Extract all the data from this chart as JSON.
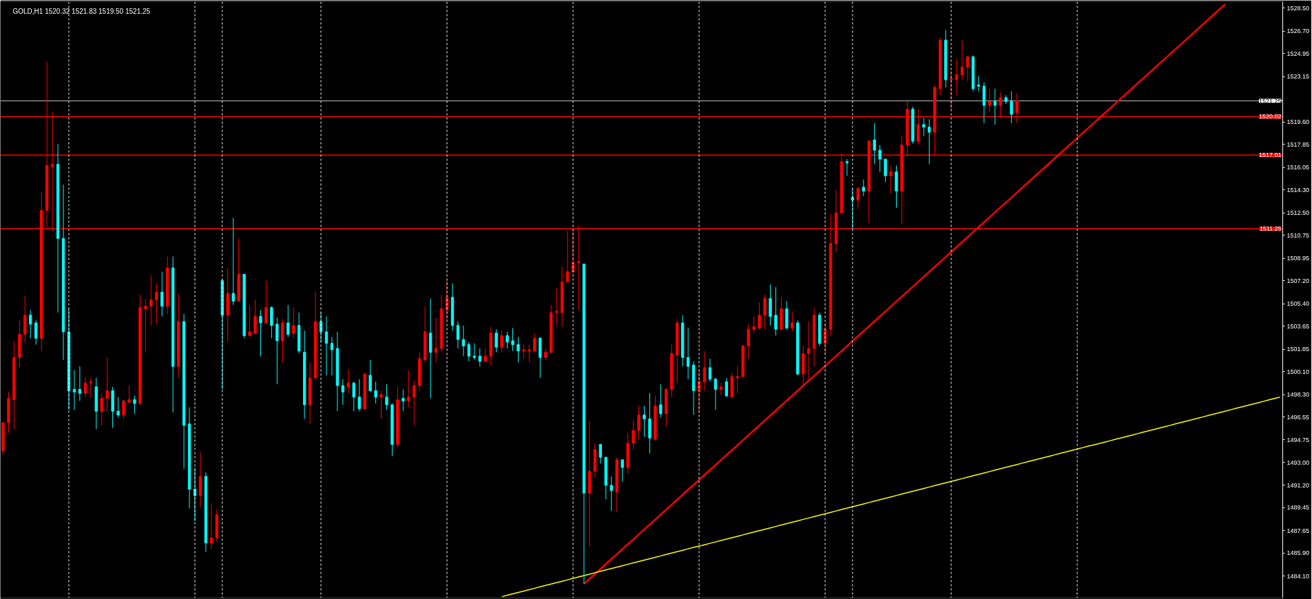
{
  "chart_data": {
    "type": "candlestick",
    "title": "GOLD,H1  1520.32 1521.83 1519.50 1521.25",
    "categories": [
      null,
      null,
      null,
      null,
      null,
      null,
      null,
      null,
      null,
      null,
      null,
      null,
      null,
      null,
      null,
      null,
      null,
      null,
      null,
      null,
      null,
      null,
      null,
      null,
      null,
      null,
      null,
      null,
      null,
      null,
      null,
      null,
      null,
      null,
      null,
      null,
      null,
      null,
      null,
      null,
      null,
      null,
      null,
      null,
      null,
      null,
      null,
      null,
      null,
      null,
      null,
      null,
      null,
      null,
      null,
      null,
      null,
      null,
      null,
      null,
      null,
      null,
      null,
      null,
      null,
      null,
      null,
      null,
      null,
      null,
      null,
      null,
      null,
      null,
      null,
      null,
      null,
      null,
      null,
      null,
      null,
      null,
      null,
      null,
      null,
      null,
      null,
      null,
      null,
      null,
      null,
      null,
      null,
      null,
      null,
      null,
      null,
      null,
      null,
      null,
      null,
      null,
      null,
      null,
      null,
      null,
      null,
      null,
      null,
      null,
      null,
      null,
      null,
      null,
      null,
      null,
      null,
      null,
      null,
      null,
      null,
      null,
      null,
      null,
      null,
      null,
      null,
      null,
      null,
      null,
      null,
      null,
      null,
      null,
      null,
      null,
      null,
      null,
      null,
      null,
      null,
      null,
      null,
      null,
      null,
      null,
      null,
      null,
      null,
      null,
      null,
      null,
      null,
      null,
      null,
      null,
      null,
      null,
      null,
      null,
      null,
      null,
      null,
      null,
      null,
      null,
      null,
      null,
      null,
      null,
      null,
      null,
      null,
      null,
      null,
      null,
      null,
      null,
      null,
      null,
      null,
      null,
      null,
      null,
      null,
      null,
      null,
      null,
      null,
      null,
      null,
      null,
      null,
      null,
      null,
      null,
      null,
      null,
      null,
      null,
      null,
      null,
      null,
      null,
      null,
      null,
      null,
      null,
      null,
      null,
      null,
      null,
      null,
      null,
      null,
      null,
      null,
      null,
      null,
      null,
      null,
      null,
      null,
      null,
      null,
      null,
      null,
      null,
      null,
      null,
      null,
      null,
      null,
      null
    ],
    "ohlc": [
      [
        1493.9,
        1496.1,
        1493.6,
        1496.1
      ],
      [
        1496.1,
        1498.5,
        1495.3,
        1498.0
      ],
      [
        1497.9,
        1502.4,
        1495.6,
        1501.2
      ],
      [
        1501.2,
        1504.1,
        1500.4,
        1503.0
      ],
      [
        1503.0,
        1506.0,
        1502.3,
        1504.5
      ],
      [
        1504.5,
        1504.9,
        1502.7,
        1503.8
      ],
      [
        1503.9,
        1504.1,
        1502.2,
        1502.7
      ],
      [
        1502.7,
        1514.1,
        1501.7,
        1512.7
      ],
      [
        1512.7,
        1524.3,
        1511.4,
        1516.2
      ],
      [
        1516.1,
        1520.4,
        1511.1,
        1516.3
      ],
      [
        1516.3,
        1517.9,
        1504.7,
        1510.5
      ],
      [
        1510.5,
        1514.7,
        1501.0,
        1503.2
      ],
      [
        1503.2,
        1505.0,
        1497.1,
        1498.6
      ],
      [
        1498.7,
        1500.2,
        1497.1,
        1498.5
      ],
      [
        1498.7,
        1500.5,
        1497.8,
        1498.4
      ],
      [
        1498.4,
        1499.7,
        1498.1,
        1499.2
      ],
      [
        1499.2,
        1499.6,
        1498.1,
        1499.3
      ],
      [
        1498.9,
        1499.6,
        1495.6,
        1497.0
      ],
      [
        1497.0,
        1498.4,
        1495.9,
        1498.0
      ],
      [
        1498.0,
        1501.2,
        1496.9,
        1498.6
      ],
      [
        1498.6,
        1498.9,
        1495.7,
        1497.0
      ],
      [
        1497.0,
        1498.1,
        1496.5,
        1496.7
      ],
      [
        1496.7,
        1497.9,
        1496.4,
        1497.8
      ],
      [
        1497.7,
        1499.0,
        1497.6,
        1497.9
      ],
      [
        1497.9,
        1498.2,
        1496.8,
        1497.6
      ],
      [
        1497.6,
        1506.1,
        1497.5,
        1505.1
      ],
      [
        1505.0,
        1505.8,
        1501.6,
        1505.2
      ],
      [
        1505.2,
        1507.6,
        1503.7,
        1505.7
      ],
      [
        1505.7,
        1507.0,
        1503.8,
        1506.3
      ],
      [
        1506.3,
        1507.9,
        1504.4,
        1505.2
      ],
      [
        1505.2,
        1509.1,
        1504.6,
        1508.2
      ],
      [
        1508.2,
        1509.1,
        1496.9,
        1500.5
      ],
      [
        1500.5,
        1506.2,
        1499.6,
        1504.0
      ],
      [
        1504.0,
        1504.6,
        1492.5,
        1495.9
      ],
      [
        1496.0,
        1497.3,
        1489.4,
        1490.9
      ],
      [
        1490.9,
        1492.5,
        1488.4,
        1490.4
      ],
      [
        1490.4,
        1493.8,
        1489.5,
        1491.9
      ],
      [
        1491.9,
        1492.2,
        1486.0,
        1486.7
      ],
      [
        1486.7,
        1489.8,
        1486.2,
        1487.1
      ],
      [
        1487.1,
        1489.3,
        1486.8,
        1488.9
      ],
      [
        1507.2,
        1507.3,
        1498.7,
        1504.5
      ],
      [
        1504.5,
        1508.2,
        1502.4,
        1506.2
      ],
      [
        1506.2,
        1512.1,
        1505.3,
        1505.6
      ],
      [
        1505.6,
        1510.5,
        1505.6,
        1507.7
      ],
      [
        1507.7,
        1507.7,
        1502.7,
        1502.9
      ],
      [
        1502.9,
        1505.3,
        1502.8,
        1503.2
      ],
      [
        1503.1,
        1505.7,
        1503.0,
        1504.4
      ],
      [
        1504.4,
        1504.9,
        1501.3,
        1503.9
      ],
      [
        1503.9,
        1507.2,
        1503.8,
        1505.1
      ],
      [
        1505.1,
        1505.2,
        1502.7,
        1503.7
      ],
      [
        1503.8,
        1504.3,
        1499.1,
        1502.5
      ],
      [
        1502.5,
        1504.2,
        1500.8,
        1503.9
      ],
      [
        1503.9,
        1505.3,
        1502.8,
        1503.0
      ],
      [
        1503.1,
        1505.1,
        1502.7,
        1503.7
      ],
      [
        1503.7,
        1504.7,
        1501.5,
        1501.7
      ],
      [
        1501.6,
        1503.3,
        1496.4,
        1497.5
      ],
      [
        1497.5,
        1500.8,
        1496.0,
        1499.6
      ],
      [
        1499.6,
        1506.3,
        1499.5,
        1504.0
      ],
      [
        1504.0,
        1504.7,
        1502.4,
        1503.2
      ],
      [
        1503.2,
        1504.4,
        1499.8,
        1502.3
      ],
      [
        1502.3,
        1502.8,
        1499.8,
        1501.8
      ],
      [
        1501.9,
        1503.2,
        1497.0,
        1499.0
      ],
      [
        1499.0,
        1499.5,
        1497.5,
        1498.5
      ],
      [
        1498.9,
        1500.3,
        1498.4,
        1499.2
      ],
      [
        1499.2,
        1499.3,
        1497.0,
        1498.1
      ],
      [
        1498.1,
        1499.5,
        1497.0,
        1497.2
      ],
      [
        1497.2,
        1500.0,
        1497.1,
        1499.9
      ],
      [
        1499.8,
        1501.0,
        1498.5,
        1498.6
      ],
      [
        1498.6,
        1499.3,
        1497.6,
        1498.1
      ],
      [
        1498.1,
        1498.6,
        1496.4,
        1498.3
      ],
      [
        1498.1,
        1499.1,
        1497.1,
        1497.5
      ],
      [
        1497.5,
        1497.6,
        1493.5,
        1494.4
      ],
      [
        1494.4,
        1498.9,
        1494.2,
        1497.9
      ],
      [
        1498.0,
        1498.7,
        1497.0,
        1497.8
      ],
      [
        1497.8,
        1500.2,
        1497.3,
        1498.1
      ],
      [
        1498.1,
        1499.4,
        1495.9,
        1499.0
      ],
      [
        1499.0,
        1501.6,
        1498.6,
        1501.1
      ],
      [
        1501.0,
        1505.2,
        1500.9,
        1503.2
      ],
      [
        1503.1,
        1505.8,
        1498.0,
        1501.6
      ],
      [
        1501.6,
        1504.3,
        1500.8,
        1501.9
      ],
      [
        1501.9,
        1506.1,
        1501.6,
        1505.0
      ],
      [
        1504.9,
        1507.2,
        1504.1,
        1505.9
      ],
      [
        1505.9,
        1507.0,
        1503.3,
        1503.7
      ],
      [
        1503.7,
        1504.0,
        1501.9,
        1502.6
      ],
      [
        1502.6,
        1503.7,
        1501.3,
        1502.1
      ],
      [
        1502.2,
        1502.4,
        1500.9,
        1501.3
      ],
      [
        1501.3,
        1502.3,
        1501.0,
        1501.2
      ],
      [
        1501.3,
        1501.9,
        1500.5,
        1500.9
      ],
      [
        1500.9,
        1501.9,
        1500.8,
        1501.3
      ],
      [
        1501.3,
        1503.6,
        1500.6,
        1503.1
      ],
      [
        1503.1,
        1503.4,
        1501.6,
        1502.0
      ],
      [
        1502.0,
        1503.3,
        1501.6,
        1502.9
      ],
      [
        1502.9,
        1503.2,
        1501.9,
        1502.4
      ],
      [
        1502.5,
        1503.5,
        1501.7,
        1502.2
      ],
      [
        1502.2,
        1502.8,
        1500.8,
        1501.7
      ],
      [
        1501.7,
        1502.2,
        1501.1,
        1501.8
      ],
      [
        1501.7,
        1502.2,
        1500.8,
        1501.8
      ],
      [
        1501.7,
        1503.1,
        1501.6,
        1502.7
      ],
      [
        1502.7,
        1502.8,
        1499.6,
        1501.2
      ],
      [
        1501.2,
        1501.9,
        1501.0,
        1501.6
      ],
      [
        1501.6,
        1505.3,
        1501.5,
        1504.7
      ],
      [
        1504.7,
        1506.6,
        1503.7,
        1504.8
      ],
      [
        1504.7,
        1508.3,
        1503.6,
        1507.1
      ],
      [
        1507.1,
        1511.1,
        1507.1,
        1507.9
      ],
      [
        1507.9,
        1511.2,
        1507.8,
        1508.6
      ],
      [
        1508.6,
        1511.5,
        1504.9,
        1508.7
      ],
      [
        1508.5,
        1508.5,
        1483.5,
        1490.6
      ],
      [
        1490.6,
        1496.2,
        1486.4,
        1492.3
      ],
      [
        1492.3,
        1494.5,
        1491.8,
        1494.0
      ],
      [
        1494.4,
        1494.4,
        1492.9,
        1493.4
      ],
      [
        1493.4,
        1493.4,
        1490.1,
        1491.2
      ],
      [
        1491.2,
        1491.9,
        1489.2,
        1490.8
      ],
      [
        1490.7,
        1493.4,
        1489.1,
        1493.2
      ],
      [
        1493.2,
        1493.2,
        1491.5,
        1492.6
      ],
      [
        1492.6,
        1495.3,
        1492.1,
        1494.5
      ],
      [
        1494.5,
        1496.3,
        1494.0,
        1495.5
      ],
      [
        1495.5,
        1497.4,
        1494.8,
        1496.7
      ],
      [
        1496.7,
        1497.4,
        1495.0,
        1496.4
      ],
      [
        1496.4,
        1498.4,
        1493.7,
        1494.9
      ],
      [
        1494.8,
        1498.2,
        1494.7,
        1497.4
      ],
      [
        1497.5,
        1499.1,
        1496.5,
        1496.8
      ],
      [
        1496.8,
        1498.8,
        1495.8,
        1498.7
      ],
      [
        1498.7,
        1502.2,
        1498.1,
        1501.5
      ],
      [
        1501.4,
        1504.2,
        1499.2,
        1503.9
      ],
      [
        1503.9,
        1504.5,
        1500.5,
        1501.2
      ],
      [
        1501.2,
        1503.5,
        1499.5,
        1500.5
      ],
      [
        1500.6,
        1500.9,
        1496.7,
        1498.6
      ],
      [
        1498.6,
        1500.2,
        1496.9,
        1499.3
      ],
      [
        1499.3,
        1501.7,
        1498.6,
        1500.4
      ],
      [
        1500.4,
        1501.1,
        1499.3,
        1499.5
      ],
      [
        1499.5,
        1499.6,
        1497.1,
        1498.7
      ],
      [
        1498.7,
        1499.2,
        1498.3,
        1498.9
      ],
      [
        1499.3,
        1499.6,
        1498.1,
        1498.2
      ],
      [
        1498.1,
        1500.0,
        1498.1,
        1499.7
      ],
      [
        1499.6,
        1500.5,
        1498.4,
        1499.7
      ],
      [
        1499.7,
        1502.2,
        1499.7,
        1502.1
      ],
      [
        1502.1,
        1503.8,
        1501.1,
        1503.4
      ],
      [
        1503.4,
        1504.4,
        1503.1,
        1503.6
      ],
      [
        1503.5,
        1505.5,
        1503.4,
        1504.5
      ],
      [
        1504.5,
        1506.1,
        1503.4,
        1505.8
      ],
      [
        1505.8,
        1506.9,
        1503.7,
        1504.4
      ],
      [
        1504.5,
        1506.7,
        1502.9,
        1503.4
      ],
      [
        1503.4,
        1505.9,
        1503.3,
        1505.0
      ],
      [
        1505.0,
        1505.6,
        1503.4,
        1503.5
      ],
      [
        1503.5,
        1504.8,
        1503.2,
        1503.9
      ],
      [
        1503.9,
        1504.1,
        1499.8,
        1499.9
      ],
      [
        1499.9,
        1502.1,
        1498.8,
        1501.5
      ],
      [
        1501.5,
        1504.0,
        1499.3,
        1501.9
      ],
      [
        1501.9,
        1505.1,
        1500.5,
        1504.5
      ],
      [
        1504.5,
        1504.7,
        1502.1,
        1502.3
      ],
      [
        1502.3,
        1503.9,
        1501.4,
        1503.4
      ],
      [
        1503.4,
        1512.4,
        1502.9,
        1510.1
      ],
      [
        1510.1,
        1514.3,
        1509.4,
        1512.5
      ],
      [
        1512.5,
        1517.1,
        1512.4,
        1516.5
      ],
      [
        1516.5,
        1516.7,
        1515.4,
        1516.4
      ],
      [
        1513.7,
        1514.4,
        1511.2,
        1513.5
      ],
      [
        1513.5,
        1514.5,
        1512.8,
        1514.4
      ],
      [
        1514.5,
        1515.1,
        1513.8,
        1514.2
      ],
      [
        1514.2,
        1518.2,
        1511.7,
        1518.1
      ],
      [
        1518.2,
        1519.5,
        1516.3,
        1517.4
      ],
      [
        1517.4,
        1517.8,
        1515.7,
        1516.7
      ],
      [
        1516.7,
        1516.7,
        1514.9,
        1515.4
      ],
      [
        1515.4,
        1516.2,
        1514.0,
        1515.7
      ],
      [
        1515.7,
        1516.2,
        1512.9,
        1514.2
      ],
      [
        1514.2,
        1518.5,
        1511.6,
        1517.8
      ],
      [
        1517.8,
        1521.2,
        1516.9,
        1520.6
      ],
      [
        1520.6,
        1520.8,
        1517.9,
        1518.1
      ],
      [
        1518.1,
        1520.6,
        1517.8,
        1519.4
      ],
      [
        1519.4,
        1519.9,
        1518.5,
        1519.2
      ],
      [
        1519.2,
        1519.8,
        1516.3,
        1518.8
      ],
      [
        1518.8,
        1522.5,
        1517.0,
        1522.3
      ],
      [
        1522.2,
        1526.2,
        1521.7,
        1526.0
      ],
      [
        1526.0,
        1526.8,
        1522.3,
        1522.9
      ],
      [
        1522.9,
        1523.6,
        1520.6,
        1523.0
      ],
      [
        1522.9,
        1524.5,
        1521.7,
        1523.3
      ],
      [
        1523.3,
        1526.0,
        1522.9,
        1523.9
      ],
      [
        1523.9,
        1524.8,
        1522.8,
        1524.7
      ],
      [
        1524.7,
        1524.8,
        1522.0,
        1522.2
      ],
      [
        1522.5,
        1523.2,
        1522.0,
        1522.4
      ],
      [
        1522.4,
        1522.7,
        1519.5,
        1520.9
      ],
      [
        1520.9,
        1522.2,
        1520.4,
        1521.2
      ],
      [
        1521.2,
        1522.2,
        1519.4,
        1520.9
      ],
      [
        1520.9,
        1521.9,
        1520.0,
        1521.5
      ],
      [
        1521.5,
        1521.7,
        1521.0,
        1521.2
      ],
      [
        1521.2,
        1522.0,
        1519.5,
        1520.2
      ],
      [
        1520.32,
        1521.83,
        1519.5,
        1521.25
      ],
      null,
      null,
      null,
      null,
      null,
      null,
      null,
      null,
      null,
      null,
      null,
      null,
      null,
      null,
      null,
      null,
      null,
      null,
      null,
      null,
      null,
      null,
      null,
      null,
      null,
      null,
      null,
      null,
      null,
      null,
      null,
      null,
      null,
      null,
      null,
      null,
      null,
      null,
      null,
      null,
      null,
      null,
      null,
      null,
      null,
      null,
      null,
      null
    ],
    "series": [
      {
        "type": "line",
        "color": "#ff0000",
        "values": [
          null,
          null,
          null,
          null,
          null,
          null,
          null,
          null,
          null,
          null,
          null,
          null,
          null,
          null,
          null,
          null,
          null,
          null,
          null,
          null,
          null,
          null,
          null,
          null,
          null,
          null,
          null,
          null,
          null,
          null,
          null,
          null,
          null,
          null,
          null,
          null,
          null,
          null,
          null,
          null,
          null,
          null,
          null,
          null,
          null,
          null,
          null,
          null,
          null,
          null,
          null,
          null,
          null,
          null,
          null,
          null,
          null,
          null,
          null,
          null,
          null,
          null,
          null,
          null,
          null,
          null,
          null,
          null,
          null,
          null,
          null,
          null,
          null,
          null,
          null,
          null,
          null,
          null,
          null,
          null,
          null,
          null,
          null,
          null,
          null,
          null,
          null,
          null,
          null,
          null,
          null,
          null,
          null,
          null,
          null,
          null,
          null,
          null,
          null,
          null,
          null,
          null,
          null,
          null,
          null,
          null,
          1483.5,
          1483.89,
          1484.27,
          1484.66,
          1485.05,
          1485.44,
          1485.82,
          1486.21,
          1486.6,
          1486.98,
          1487.37,
          1487.76,
          1488.15,
          1488.53,
          1488.92,
          1489.31,
          1489.7,
          1490.08,
          1490.47,
          1490.86,
          1491.24,
          1491.63,
          1492.02,
          1492.41,
          1492.79,
          1493.18,
          1493.57,
          1493.95,
          1494.34,
          1494.73,
          1495.12,
          1495.5,
          1495.89,
          1496.28,
          1496.66,
          1497.05,
          1497.44,
          1497.83,
          1498.21,
          1498.6,
          1498.99,
          1499.38,
          1499.76,
          1500.15,
          1500.54,
          1500.92,
          1501.31,
          1501.7,
          1502.09,
          1502.47,
          1502.86,
          1503.25,
          1503.63,
          1504.02,
          1504.41,
          1504.8,
          1505.18,
          1505.57,
          1505.96,
          1506.34,
          1506.73,
          1507.12,
          1507.51,
          1507.89,
          1508.28,
          1508.67,
          1509.06,
          1509.44,
          1509.83,
          1510.22,
          1510.6,
          1510.99,
          1511.38,
          1511.77,
          1512.15,
          1512.54,
          1512.93,
          1513.31,
          1513.7,
          1514.09,
          1514.48,
          1514.86,
          1515.25,
          1515.64,
          1516.02,
          1516.41,
          1516.8,
          1517.19,
          1517.57,
          1517.96,
          1518.35,
          1518.74,
          1519.12,
          1519.51,
          1519.9,
          1520.28,
          1520.67,
          1521.06,
          1521.45,
          1521.83,
          1522.22,
          1522.61,
          1522.99,
          1523.38,
          1523.77,
          1524.16,
          1524.54,
          1524.93,
          1525.32,
          1525.7,
          1526.09,
          1526.48,
          1526.87,
          1527.25,
          1527.64,
          1528.03,
          1528.42,
          1528.8,
          null,
          null,
          null,
          null,
          null,
          null,
          null,
          null,
          null,
          null
        ]
      },
      {
        "type": "line",
        "color": "#ffff00",
        "values": [
          null,
          null,
          null,
          null,
          null,
          null,
          null,
          null,
          null,
          null,
          null,
          null,
          null,
          null,
          null,
          null,
          null,
          null,
          null,
          null,
          null,
          null,
          null,
          null,
          null,
          null,
          null,
          null,
          null,
          null,
          null,
          null,
          null,
          null,
          null,
          null,
          null,
          null,
          null,
          null,
          null,
          null,
          null,
          null,
          null,
          null,
          null,
          null,
          null,
          null,
          null,
          null,
          null,
          null,
          null,
          null,
          null,
          null,
          null,
          null,
          null,
          null,
          null,
          null,
          null,
          null,
          null,
          null,
          null,
          null,
          null,
          null,
          null,
          null,
          null,
          null,
          null,
          null,
          null,
          null,
          null,
          null,
          null,
          null,
          null,
          null,
          null,
          null,
          null,
          null,
          null,
          1482.5,
          1482.61,
          1482.72,
          1482.83,
          1482.94,
          1483.05,
          1483.16,
          1483.27,
          1483.38,
          1483.49,
          1483.6,
          1483.71,
          1483.82,
          1483.93,
          1484.04,
          1484.15,
          1484.26,
          1484.37,
          1484.48,
          1484.59,
          1484.7,
          1484.81,
          1484.92,
          1485.03,
          1485.14,
          1485.25,
          1485.36,
          1485.47,
          1485.58,
          1485.69,
          1485.8,
          1485.91,
          1486.02,
          1486.13,
          1486.24,
          1486.35,
          1486.45,
          1486.56,
          1486.67,
          1486.78,
          1486.89,
          1487.0,
          1487.11,
          1487.22,
          1487.33,
          1487.44,
          1487.55,
          1487.66,
          1487.77,
          1487.88,
          1487.99,
          1488.1,
          1488.21,
          1488.32,
          1488.43,
          1488.54,
          1488.65,
          1488.76,
          1488.87,
          1488.98,
          1489.09,
          1489.2,
          1489.31,
          1489.42,
          1489.53,
          1489.64,
          1489.75,
          1489.86,
          1489.97,
          1490.08,
          1490.19,
          1490.3,
          1490.41,
          1490.52,
          1490.63,
          1490.74,
          1490.85,
          1490.96,
          1491.07,
          1491.18,
          1491.29,
          1491.4,
          1491.51,
          1491.62,
          1491.73,
          1491.84,
          1491.95,
          1492.06,
          1492.17,
          1492.28,
          1492.39,
          1492.5,
          1492.61,
          1492.72,
          1492.83,
          1492.94,
          1493.05,
          1493.16,
          1493.27,
          1493.38,
          1493.49,
          1493.6,
          1493.71,
          1493.82,
          1493.93,
          1494.04,
          1494.15,
          1494.26,
          1494.36,
          1494.47,
          1494.58,
          1494.69,
          1494.8,
          1494.91,
          1495.02,
          1495.13,
          1495.24,
          1495.35,
          1495.46,
          1495.57,
          1495.68,
          1495.79,
          1495.9,
          1496.01,
          1496.12,
          1496.23,
          1496.34,
          1496.45,
          1496.56,
          1496.67,
          1496.78,
          1496.89,
          1497.0,
          1497.11,
          1497.22,
          1497.33,
          1497.44,
          1497.55,
          1497.66,
          1497.77,
          1497.88,
          1497.99,
          1498.1
        ]
      }
    ],
    "ylim": [
      1482.4,
      1529.0
    ],
    "yticks": [
      {
        "value": 1528.5,
        "label": "1528.50"
      },
      {
        "value": 1526.7,
        "label": "1526.70"
      },
      {
        "value": 1524.95,
        "label": "1524.95"
      },
      {
        "value": 1523.15,
        "label": "1523.15"
      },
      {
        "value": 1519.6,
        "label": "1519.60"
      },
      {
        "value": 1517.85,
        "label": "1517.85"
      },
      {
        "value": 1516.05,
        "label": "1516.05"
      },
      {
        "value": 1514.3,
        "label": "1514.30"
      },
      {
        "value": 1512.5,
        "label": "1512.50"
      },
      {
        "value": 1510.75,
        "label": "1510.75"
      },
      {
        "value": 1508.95,
        "label": "1508.95"
      },
      {
        "value": 1507.2,
        "label": "1507.20"
      },
      {
        "value": 1505.4,
        "label": "1505.40"
      },
      {
        "value": 1503.65,
        "label": "1503.65"
      },
      {
        "value": 1501.85,
        "label": "1501.85"
      },
      {
        "value": 1500.1,
        "label": "1500.10"
      },
      {
        "value": 1498.3,
        "label": "1498.30"
      },
      {
        "value": 1496.55,
        "label": "1496.55"
      },
      {
        "value": 1494.75,
        "label": "1494.75"
      },
      {
        "value": 1493.0,
        "label": "1493.00"
      },
      {
        "value": 1491.2,
        "label": "1491.20"
      },
      {
        "value": 1489.45,
        "label": "1489.45"
      },
      {
        "value": 1487.65,
        "label": "1487.65"
      },
      {
        "value": 1485.9,
        "label": "1485.90"
      },
      {
        "value": 1484.1,
        "label": "1484.10"
      }
    ],
    "ref_lines": [
      {
        "axis": "y",
        "value": 1521.25,
        "label": "1521.25",
        "color": "#c0c0c0"
      },
      {
        "axis": "y",
        "value": 1520.02,
        "label": "1520.02",
        "color": "#ff0000"
      },
      {
        "axis": "y",
        "value": 1517.01,
        "label": "1517.01",
        "color": "#ff0000"
      },
      {
        "axis": "y",
        "value": 1511.25,
        "label": "1511.25",
        "color": "#ff0000"
      }
    ],
    "tick_labels": "y"
  }
}
